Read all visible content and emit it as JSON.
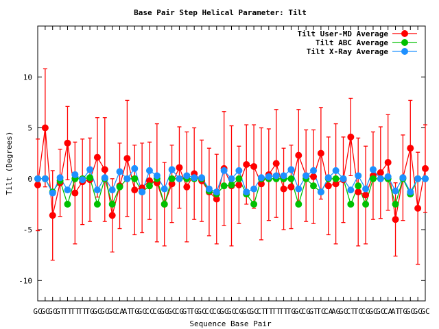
{
  "chart_data": {
    "type": "line",
    "title": "Base Pair Step Helical Parameter: Tilt",
    "xlabel": "Sequence Base Pair",
    "ylabel": "Tilt (Degrees)",
    "ylim": [
      -12,
      15
    ],
    "yticks": [
      -10,
      -5,
      0,
      5,
      10
    ],
    "x_range": [
      0,
      52
    ],
    "x_tick_labels": [
      "GC",
      "GC",
      "GC",
      "GT",
      "TT",
      "TT",
      "TT",
      "TG",
      "GC",
      "GC",
      "GC",
      "CA",
      "AT",
      "TG",
      "GC",
      "CC",
      "CG",
      "GC",
      "GC",
      "CG",
      "GT",
      "TG",
      "GC",
      "CC",
      "CG",
      "GC",
      "GC",
      "CG",
      "GC",
      "GC",
      "CT",
      "TT",
      "TT",
      "TT",
      "TG",
      "GC",
      "CG",
      "GT",
      "TC",
      "CA",
      "AG",
      "GC",
      "CT",
      "TC",
      "CG",
      "GC",
      "GC",
      "CA",
      "AT",
      "TG",
      "GC",
      "GC",
      "GC"
    ],
    "legend_position": "top-right",
    "series": [
      {
        "name": "Tilt User-MD Average",
        "color": "#ff0000",
        "y": [
          -0.6,
          5.0,
          -3.6,
          -0.4,
          3.5,
          -1.4,
          -0.3,
          -0.1,
          2.1,
          0.9,
          -3.6,
          -0.7,
          2.0,
          -1.1,
          -0.9,
          -0.2,
          -0.4,
          -2.5,
          -0.5,
          1.1,
          -0.8,
          0.5,
          -0.2,
          -1.3,
          -2.0,
          1.0,
          -0.7,
          -0.6,
          1.4,
          1.2,
          -0.5,
          0.4,
          1.5,
          -1.0,
          -0.8,
          2.3,
          0.3,
          0.2,
          2.5,
          -0.7,
          -0.5,
          -0.1,
          4.1,
          -1.3,
          -1.6,
          0.3,
          0.6,
          1.6,
          -4.0,
          0.1,
          3.0,
          -2.9,
          1.0
        ],
        "err": [
          4.5,
          5.8,
          4.4,
          3.3,
          3.6,
          5.0,
          4.2,
          4.1,
          3.9,
          5.1,
          3.6,
          4.2,
          5.7,
          4.4,
          4.4,
          3.8,
          5.8,
          4.1,
          3.8,
          4.0,
          5.4,
          4.5,
          4.0,
          4.3,
          4.4,
          5.6,
          5.9,
          3.8,
          3.9,
          4.1,
          5.5,
          4.5,
          5.3,
          4.0,
          4.1,
          4.5,
          4.5,
          4.6,
          4.5,
          4.8,
          5.9,
          4.2,
          3.8,
          5.3,
          4.8,
          4.3,
          4.5,
          4.7,
          3.6,
          4.2,
          4.7,
          5.5,
          4.3
        ]
      },
      {
        "name": "Tilt ABC Average",
        "color": "#00c000",
        "y": [
          0.0,
          0.0,
          -1.3,
          -0.2,
          -2.5,
          0.0,
          0.0,
          0.1,
          -2.5,
          0.0,
          -2.5,
          -0.8,
          0.0,
          0.0,
          -1.3,
          -0.7,
          0.0,
          -2.5,
          0.0,
          0.0,
          0.0,
          0.0,
          0.0,
          -1.2,
          -1.5,
          -0.7,
          -0.6,
          0.0,
          -1.5,
          -2.5,
          0.0,
          0.0,
          0.0,
          0.0,
          0.0,
          -2.5,
          0.0,
          -0.7,
          -1.3,
          0.0,
          0.0,
          0.0,
          -2.5,
          -0.7,
          -2.5,
          0.0,
          0.0,
          0.0,
          -2.5,
          0.0,
          -1.5,
          0.0,
          0.0
        ],
        "err": []
      },
      {
        "name": "Tilt X-Ray Average",
        "color": "#1e90ff",
        "y": [
          0.0,
          0.0,
          -1.4,
          0.1,
          -1.1,
          0.4,
          -0.1,
          0.9,
          -1.1,
          0.1,
          -1.1,
          0.7,
          0.0,
          1.0,
          -1.3,
          0.8,
          0.3,
          -1.0,
          0.9,
          0.0,
          0.3,
          0.1,
          0.1,
          -1.0,
          -1.3,
          0.8,
          0.0,
          0.8,
          -1.3,
          -1.0,
          0.1,
          0.2,
          0.3,
          0.3,
          0.9,
          -1.0,
          0.3,
          0.8,
          -1.3,
          0.1,
          0.8,
          0.0,
          -1.1,
          0.3,
          -1.0,
          0.9,
          0.0,
          0.2,
          -1.2,
          0.1,
          -1.3,
          0.0,
          0.0
        ],
        "err": []
      }
    ]
  }
}
